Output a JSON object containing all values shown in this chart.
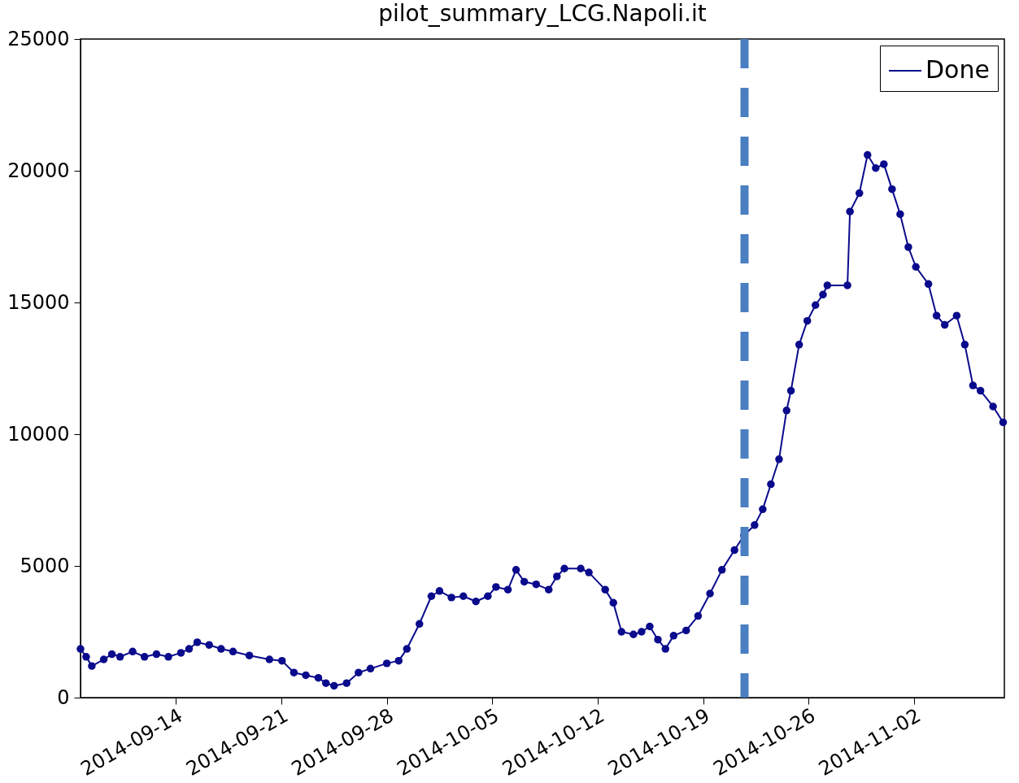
{
  "chart_data": {
    "type": "line",
    "title": "pilot_summary_LCG.Napoli.it",
    "x": [
      "2014-09-07T16:00",
      "2014-09-08T01:00",
      "2014-09-08T10:00",
      "2014-09-09T05:00",
      "2014-09-09T18:00",
      "2014-09-10T07:00",
      "2014-09-11T03:00",
      "2014-09-11T22:00",
      "2014-09-12T17:00",
      "2014-09-13T12:00",
      "2014-09-14T08:00",
      "2014-09-14T21:00",
      "2014-09-15T10:00",
      "2014-09-16T05:00",
      "2014-09-17T00:00",
      "2014-09-17T19:00",
      "2014-09-18T21:00",
      "2014-09-20T05:00",
      "2014-09-21T01:00",
      "2014-09-21T20:00",
      "2014-09-22T15:00",
      "2014-09-23T11:00",
      "2014-09-23T23:00",
      "2014-09-24T12:00",
      "2014-09-25T08:00",
      "2014-09-26T03:00",
      "2014-09-26T22:00",
      "2014-09-28T00:00",
      "2014-09-28T19:00",
      "2014-09-29T08:00",
      "2014-09-30T04:00",
      "2014-09-30T23:00",
      "2014-10-01T12:00",
      "2014-10-02T07:00",
      "2014-10-03T02:00",
      "2014-10-03T22:00",
      "2014-10-04T17:00",
      "2014-10-05T06:00",
      "2014-10-06T01:00",
      "2014-10-06T14:00",
      "2014-10-07T03:00",
      "2014-10-07T22:00",
      "2014-10-08T18:00",
      "2014-10-09T07:00",
      "2014-10-09T19:00",
      "2014-10-10T21:00",
      "2014-10-11T10:00",
      "2014-10-12T12:00",
      "2014-10-13T01:00",
      "2014-10-13T14:00",
      "2014-10-14T09:00",
      "2014-10-14T22:00",
      "2014-10-15T11:00",
      "2014-10-16T00:00",
      "2014-10-16T12:00",
      "2014-10-17T01:00",
      "2014-10-17T21:00",
      "2014-10-18T16:00",
      "2014-10-19T11:00",
      "2014-10-20T06:00",
      "2014-10-21T02:00",
      "2014-10-21T17:00",
      "2014-10-22T10:00",
      "2014-10-22T23:00",
      "2014-10-23T12:00",
      "2014-10-24T01:00",
      "2014-10-24T13:00",
      "2014-10-24T20:00",
      "2014-10-25T09:00",
      "2014-10-25T22:00",
      "2014-10-26T11:00",
      "2014-10-26T23:00",
      "2014-10-27T06:00",
      "2014-10-28T14:00",
      "2014-10-28T18:00",
      "2014-10-29T09:00",
      "2014-10-29T22:00",
      "2014-10-30T11:00",
      "2014-10-31T00:00",
      "2014-10-31T13:00",
      "2014-11-01T02:00",
      "2014-11-01T15:00",
      "2014-11-02T03:00",
      "2014-11-02T23:00",
      "2014-11-03T12:00",
      "2014-11-04T01:00",
      "2014-11-04T20:00",
      "2014-11-05T09:00",
      "2014-11-05T22:00",
      "2014-11-06T10:00",
      "2014-11-07T06:00",
      "2014-11-07T22:00"
    ],
    "series": [
      {
        "name": "Done",
        "color": "#0a0a8c",
        "values": [
          1850,
          1550,
          1200,
          1450,
          1650,
          1550,
          1750,
          1550,
          1650,
          1550,
          1700,
          1850,
          2100,
          2000,
          1850,
          1750,
          1600,
          1450,
          1400,
          950,
          850,
          750,
          550,
          450,
          550,
          950,
          1100,
          1300,
          1400,
          1850,
          2800,
          3850,
          4050,
          3800,
          3850,
          3650,
          3850,
          4200,
          4100,
          4850,
          4400,
          4300,
          4100,
          4600,
          4900,
          4900,
          4750,
          4100,
          3600,
          2500,
          2400,
          2500,
          2700,
          2200,
          1850,
          2350,
          2550,
          3100,
          3950,
          4850,
          5600,
          6150,
          6550,
          7150,
          8100,
          9050,
          10900,
          11650,
          13400,
          14300,
          14900,
          15300,
          15650,
          15650,
          18450,
          19150,
          20600,
          20100,
          20250,
          19300,
          18350,
          17100,
          16350,
          15700,
          14500,
          14150,
          14500,
          13400,
          11850,
          11650,
          11050,
          10450
        ]
      }
    ],
    "xlim": [
      "2014-09-07T16:00",
      "2014-11-08T00:00"
    ],
    "xticks": [
      "2014-09-14",
      "2014-09-21",
      "2014-09-28",
      "2014-10-05",
      "2014-10-12",
      "2014-10-19",
      "2014-10-26",
      "2014-11-02"
    ],
    "ylim": [
      0,
      25000
    ],
    "yticks": [
      0,
      5000,
      10000,
      15000,
      20000,
      25000
    ],
    "ref_lines": [
      {
        "axis": "x",
        "value": "2014-10-21T18:00",
        "color": "#4a7fc1",
        "line_style": "dashed"
      }
    ],
    "legend": "top right",
    "marker": "circle",
    "line_style": "solid"
  }
}
